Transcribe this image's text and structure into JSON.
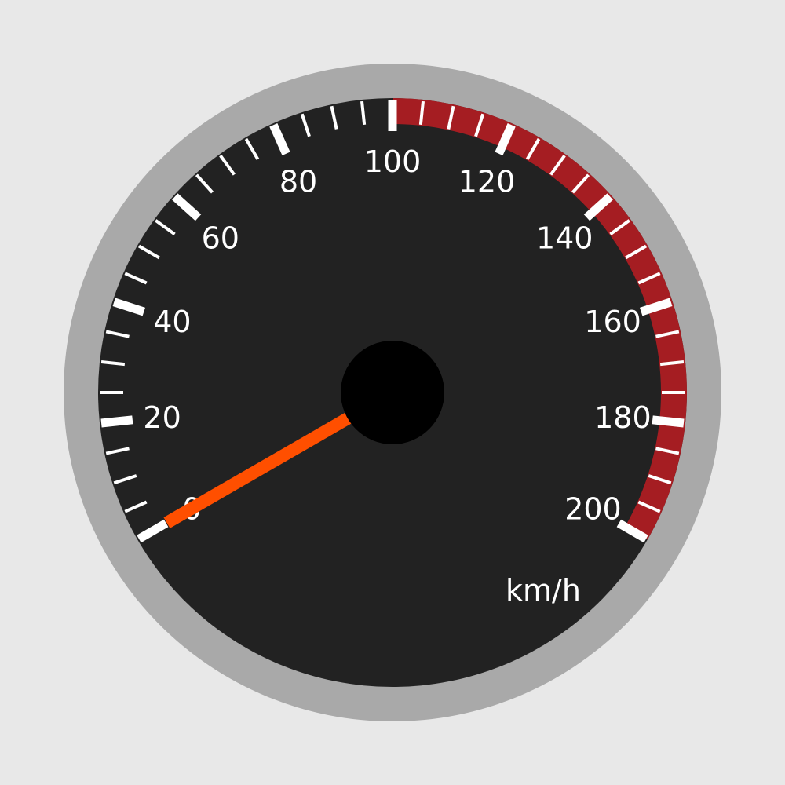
{
  "gauge": {
    "min": 0,
    "max": 200,
    "reading": 0,
    "unit_label": "km/h",
    "major_step": 20,
    "minor_step": 5,
    "redline_start": 100,
    "tick_labels": [
      "0",
      "20",
      "40",
      "60",
      "80",
      "100",
      "120",
      "140",
      "160",
      "180",
      "200"
    ],
    "colors": {
      "background": "#e8e8e8",
      "bezel": "#a9a9a9",
      "face": "#222222",
      "redline": "#a51d22",
      "ticks": "#ffffff",
      "needle": "#ff4f00",
      "hub": "#000000"
    }
  }
}
